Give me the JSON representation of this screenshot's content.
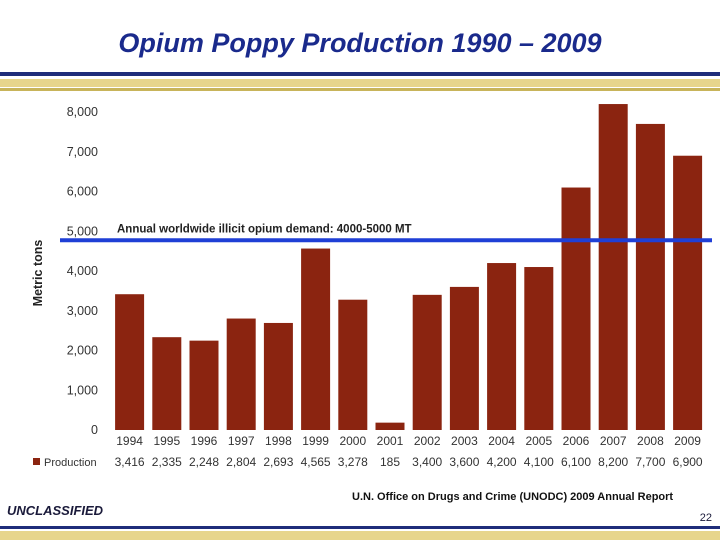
{
  "slide": {
    "title": "Opium Poppy Production 1990 – 2009",
    "classification": "UNCLASSIFIED",
    "source": "U.N. Office on Drugs and Crime (UNODC) 2009 Annual Report",
    "page_number": "22"
  },
  "colors": {
    "bar": "#8b2410",
    "demand_line": "#1f3fd6",
    "title": "#1a2a8c"
  },
  "chart_data": {
    "type": "bar",
    "title": "",
    "xlabel": "",
    "ylabel": "Metric tons",
    "categories": [
      "1994",
      "1995",
      "1996",
      "1997",
      "1998",
      "1999",
      "2000",
      "2001",
      "2002",
      "2003",
      "2004",
      "2005",
      "2006",
      "2007",
      "2008",
      "2009"
    ],
    "series": [
      {
        "name": "Production",
        "values": [
          3416,
          2335,
          2248,
          2804,
          2693,
          4565,
          3278,
          185,
          3400,
          3600,
          4200,
          4100,
          6100,
          8200,
          7700,
          6900
        ],
        "labels": [
          "3,416",
          "2,335",
          "2,248",
          "2,804",
          "2,693",
          "4,565",
          "3,278",
          "185",
          "3,400",
          "3,600",
          "4,200",
          "4,100",
          "6,100",
          "8,200",
          "7,700",
          "6,900"
        ]
      }
    ],
    "ylim": [
      0,
      8000
    ],
    "yticks": [
      0,
      1000,
      2000,
      3000,
      4000,
      5000,
      6000,
      7000,
      8000
    ],
    "ytick_labels": [
      "0",
      "1,000",
      "2,000",
      "3,000",
      "4,000",
      "5,000",
      "6,000",
      "7,000",
      "8,000"
    ],
    "grid": false,
    "legend": "data-table-bottom",
    "reference_line": {
      "value": 5000,
      "label": "Annual worldwide illicit opium demand:  4000-5000 MT"
    }
  }
}
